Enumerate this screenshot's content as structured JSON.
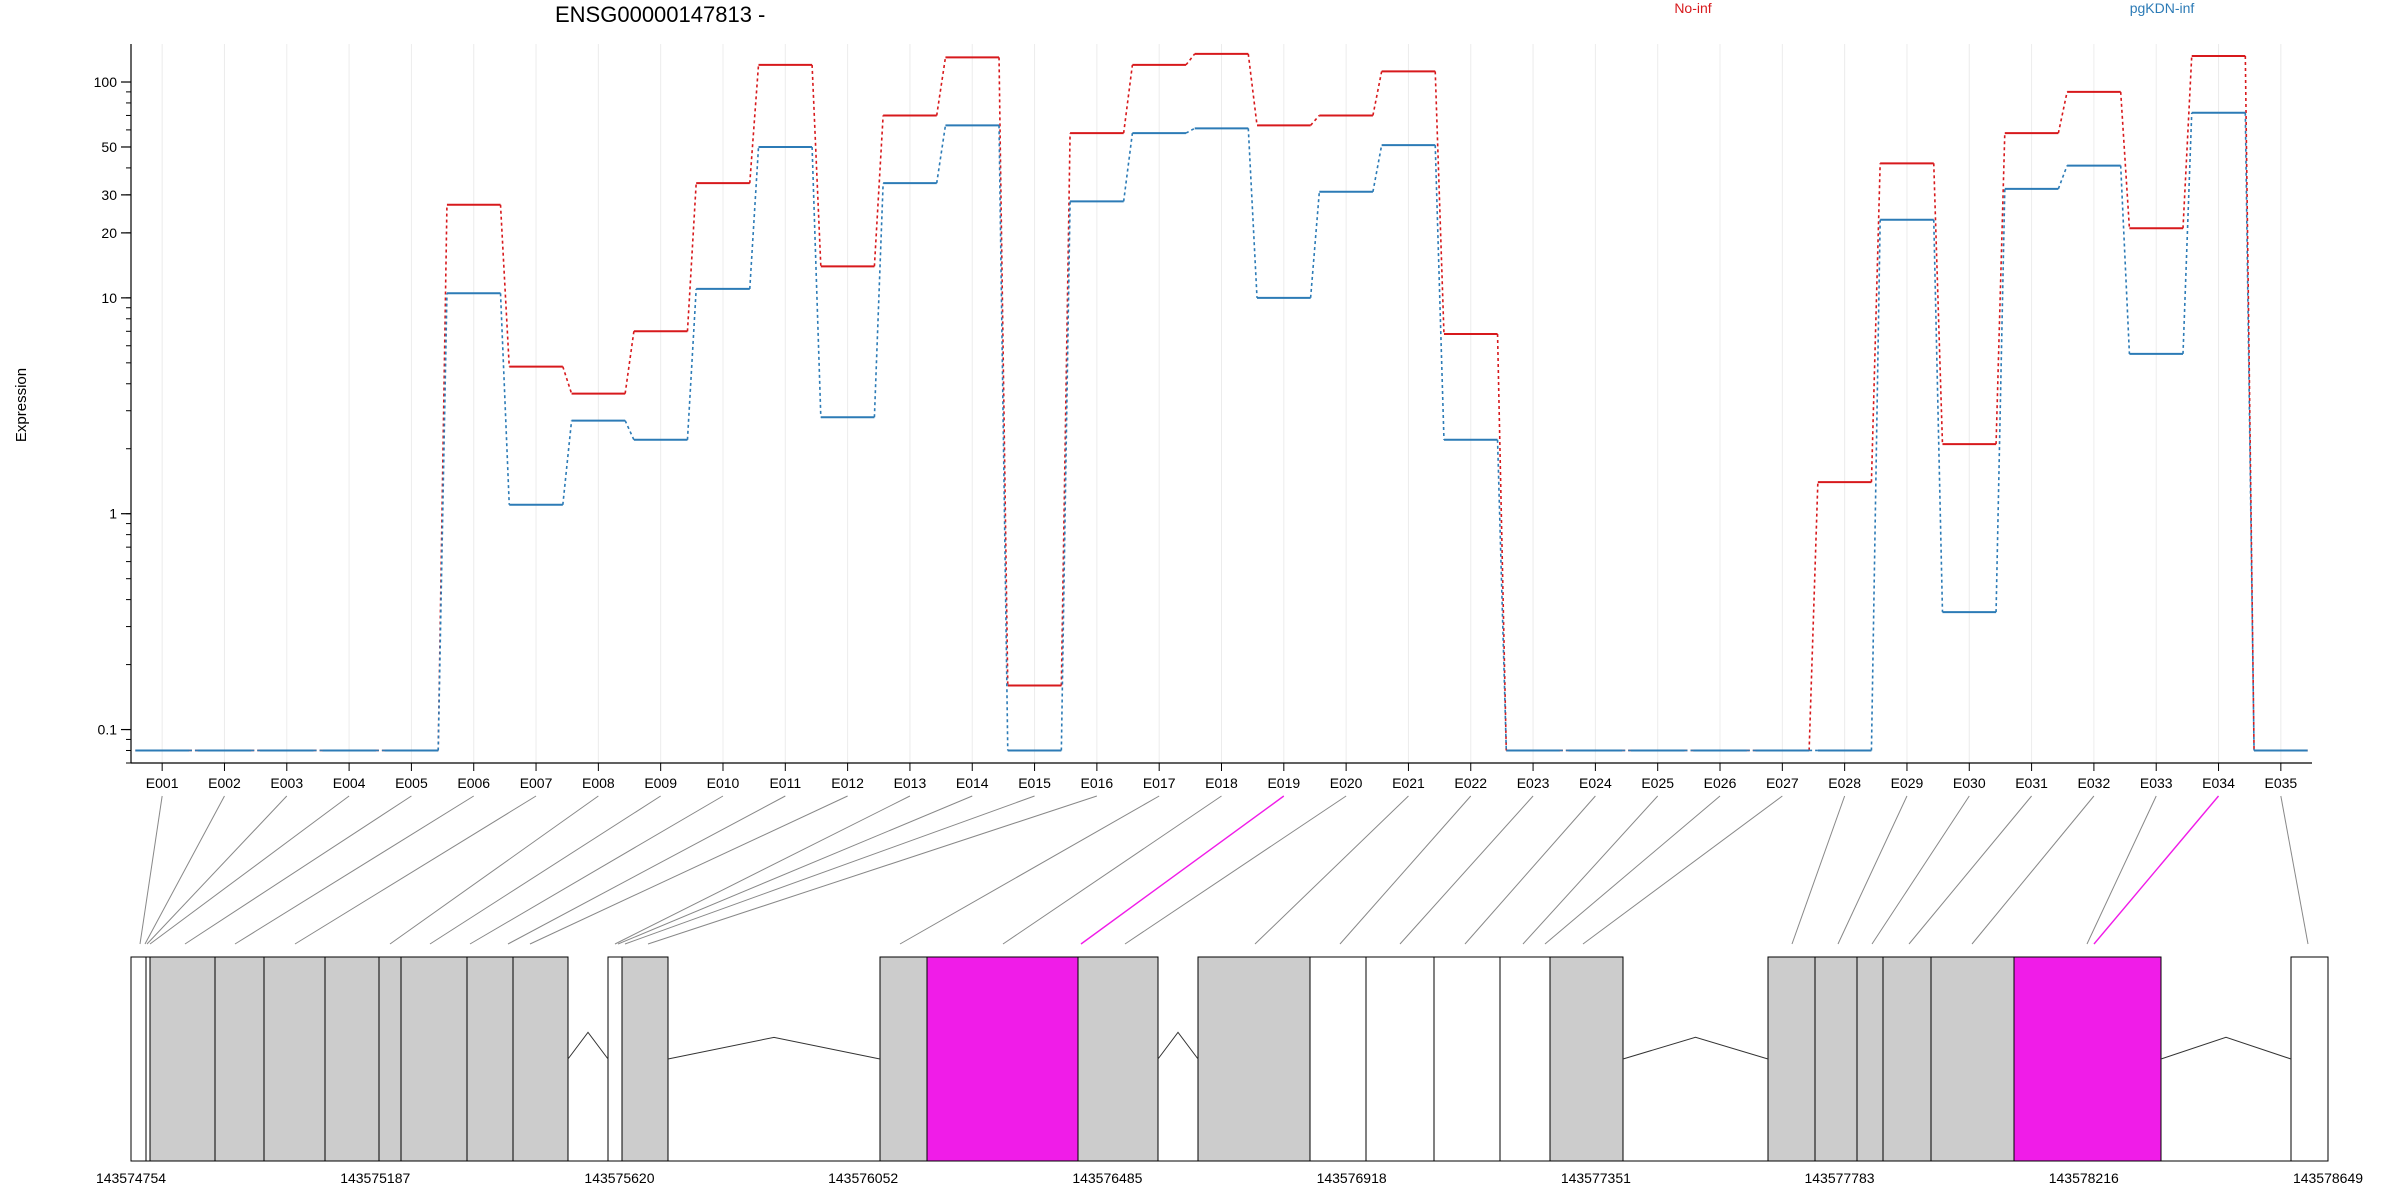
{
  "chart_data": {
    "type": "line",
    "title": "ENSG00000147813 -",
    "xlabel": "",
    "ylabel": "Expression",
    "y_scale": "log",
    "y_ticks": [
      0.1,
      1,
      10,
      20,
      30,
      50,
      100
    ],
    "ylim": [
      0.07,
      150
    ],
    "grid": "vertical",
    "legend_placement": "top",
    "categories": [
      "E001",
      "E002",
      "E003",
      "E004",
      "E005",
      "E006",
      "E007",
      "E008",
      "E009",
      "E010",
      "E011",
      "E012",
      "E013",
      "E014",
      "E015",
      "E016",
      "E017",
      "E018",
      "E019",
      "E020",
      "E021",
      "E022",
      "E023",
      "E024",
      "E025",
      "E026",
      "E027",
      "E028",
      "E029",
      "E030",
      "E031",
      "E032",
      "E033",
      "E034",
      "E035"
    ],
    "series": [
      {
        "name": "No-inf",
        "color": "#d7191c",
        "values": [
          0.08,
          0.08,
          0.08,
          0.08,
          0.08,
          27,
          4.8,
          3.6,
          7,
          34,
          120,
          14,
          70,
          130,
          0.16,
          58,
          120,
          135,
          63,
          70,
          112,
          6.8,
          0.08,
          0.08,
          0.08,
          0.08,
          0.08,
          1.4,
          42,
          2.1,
          58,
          90,
          21,
          132,
          0.08
        ]
      },
      {
        "name": "pgKDN-inf",
        "color": "#2c7bb6",
        "values": [
          0.08,
          0.08,
          0.08,
          0.08,
          0.08,
          10.5,
          1.1,
          2.7,
          2.2,
          11,
          50,
          2.8,
          34,
          63,
          0.08,
          28,
          58,
          61,
          10,
          31,
          51,
          2.2,
          0.08,
          0.08,
          0.08,
          0.08,
          0.08,
          0.08,
          23,
          0.35,
          32,
          41,
          5.5,
          72,
          0.08
        ]
      }
    ],
    "gene_model": {
      "coordinate_ticks": [
        "143574754",
        "143575187",
        "143575620",
        "143576052",
        "143576485",
        "143576918",
        "143577351",
        "143577783",
        "143578216",
        "143578649"
      ],
      "highlighted_exons": [
        "E019",
        "E034"
      ],
      "highlight_color": "#f01ce8",
      "exon_fill": "#cccccc"
    }
  }
}
